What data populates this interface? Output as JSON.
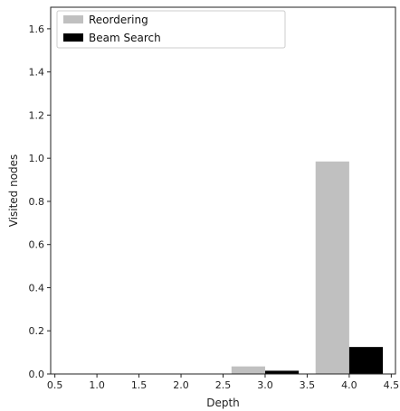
{
  "chart_data": {
    "type": "bar",
    "title": "",
    "xlabel": "Depth",
    "ylabel": "Visited nodes",
    "xlim": [
      0.45,
      4.55
    ],
    "ylim": [
      0,
      1.7
    ],
    "x_ticks": [
      "0.5",
      "1.0",
      "1.5",
      "2.0",
      "2.5",
      "3.0",
      "3.5",
      "4.0",
      "4.5"
    ],
    "y_ticks": [
      "0.0",
      "0.2",
      "0.4",
      "0.6",
      "0.8",
      "1.0",
      "1.2",
      "1.4",
      "1.6"
    ],
    "grid": false,
    "legend_position": "top-left",
    "bar_width": 0.4,
    "series": [
      {
        "name": "Reordering",
        "color": "#c0c0c0",
        "x": [
          2.8,
          3.8
        ],
        "values": [
          0.035,
          0.985
        ]
      },
      {
        "name": "Beam Search",
        "color": "#000000",
        "x": [
          3.2,
          4.2
        ],
        "values": [
          0.015,
          0.125
        ]
      }
    ]
  }
}
